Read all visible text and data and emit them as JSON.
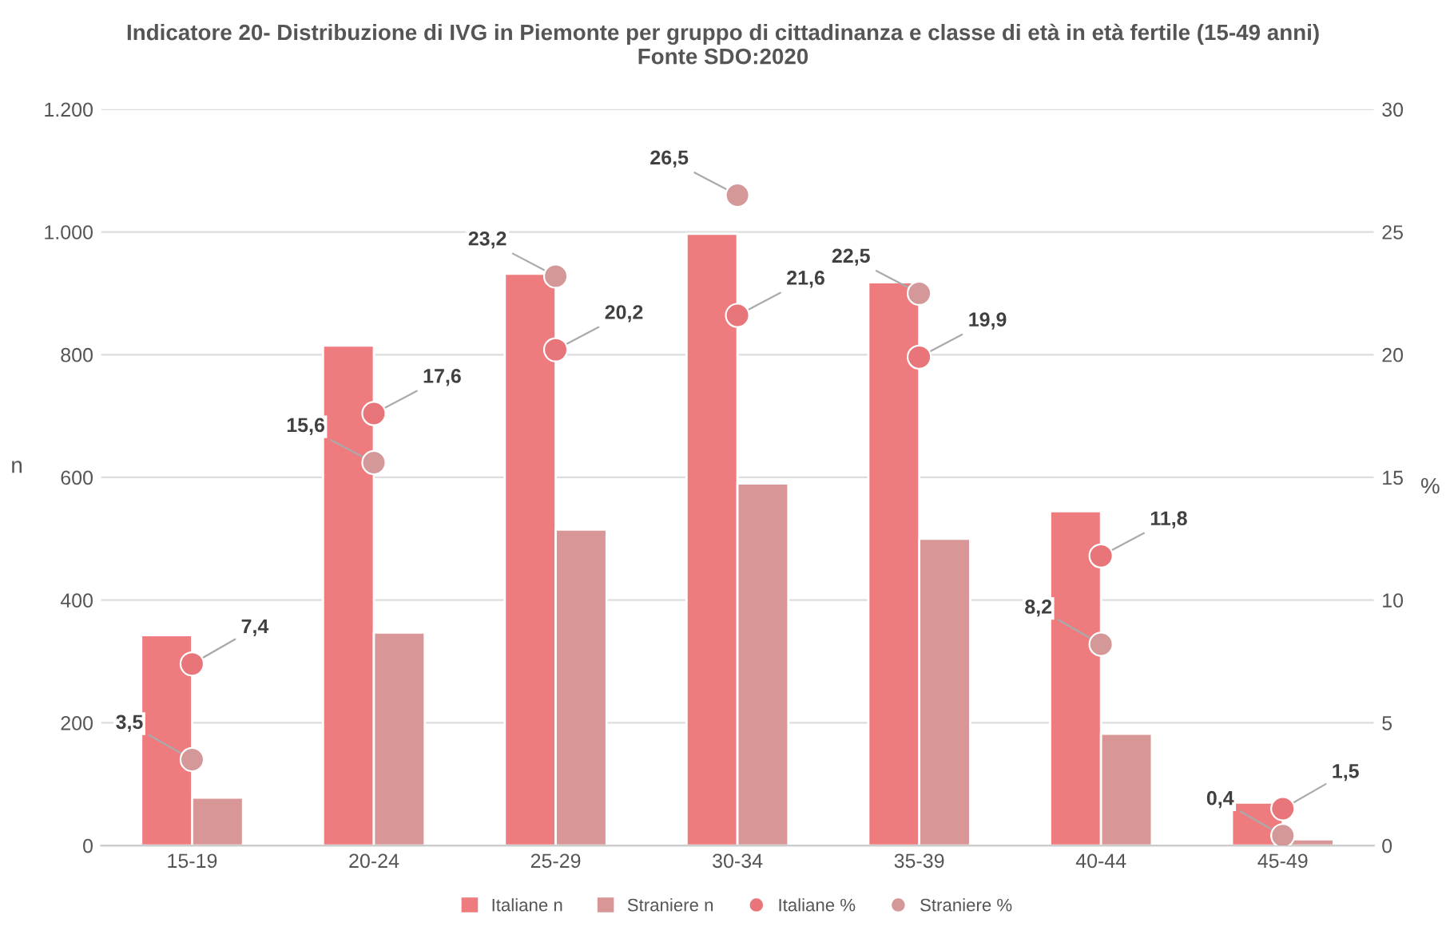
{
  "chart_data": {
    "type": "bar",
    "title": "Indicatore 20- Distribuzione di IVG in Piemonte per gruppo di cittadinanza e classe di età in età fertile (15-49 anni)\nFonte SDO:2020",
    "categories": [
      "15-19",
      "20-24",
      "25-29",
      "30-34",
      "35-39",
      "40-44",
      "45-49"
    ],
    "series": [
      {
        "name": "Italiane n",
        "color": "#ee7b7e",
        "values": [
          343,
          815,
          932,
          997,
          918,
          545,
          70
        ]
      },
      {
        "name": "Straniere n",
        "color": "#d89697",
        "values": [
          78,
          347,
          515,
          590,
          500,
          182,
          10
        ]
      },
      {
        "name": "Italiane %",
        "type": "scatter",
        "axis": "y2",
        "color": "#e8757a",
        "values": [
          7.4,
          17.6,
          20.2,
          21.6,
          19.9,
          11.8,
          1.5
        ],
        "value_labels": [
          "7,4",
          "17,6",
          "20,2",
          "21,6",
          "19,9",
          "11,8",
          "1,5"
        ]
      },
      {
        "name": "Straniere %",
        "type": "scatter",
        "axis": "y2",
        "color": "#d49899",
        "values": [
          3.5,
          15.6,
          23.2,
          26.5,
          22.5,
          8.2,
          0.4
        ],
        "value_labels": [
          "3,5",
          "15,6",
          "23,2",
          "26,5",
          "22,5",
          "8,2",
          "0,4"
        ]
      }
    ],
    "ylabel": "n",
    "y2label": "%",
    "ylim": [
      0,
      1200
    ],
    "yticks": [
      0,
      200,
      400,
      600,
      800,
      {
        "value": 1000,
        "label": "1.000"
      },
      {
        "value": 1200,
        "label": "1.200"
      }
    ],
    "y2lim": [
      0,
      30
    ],
    "y2ticks": [
      0,
      5,
      10,
      15,
      20,
      25,
      30
    ],
    "grid": "y",
    "legend": "bottom",
    "marker": "circle"
  }
}
